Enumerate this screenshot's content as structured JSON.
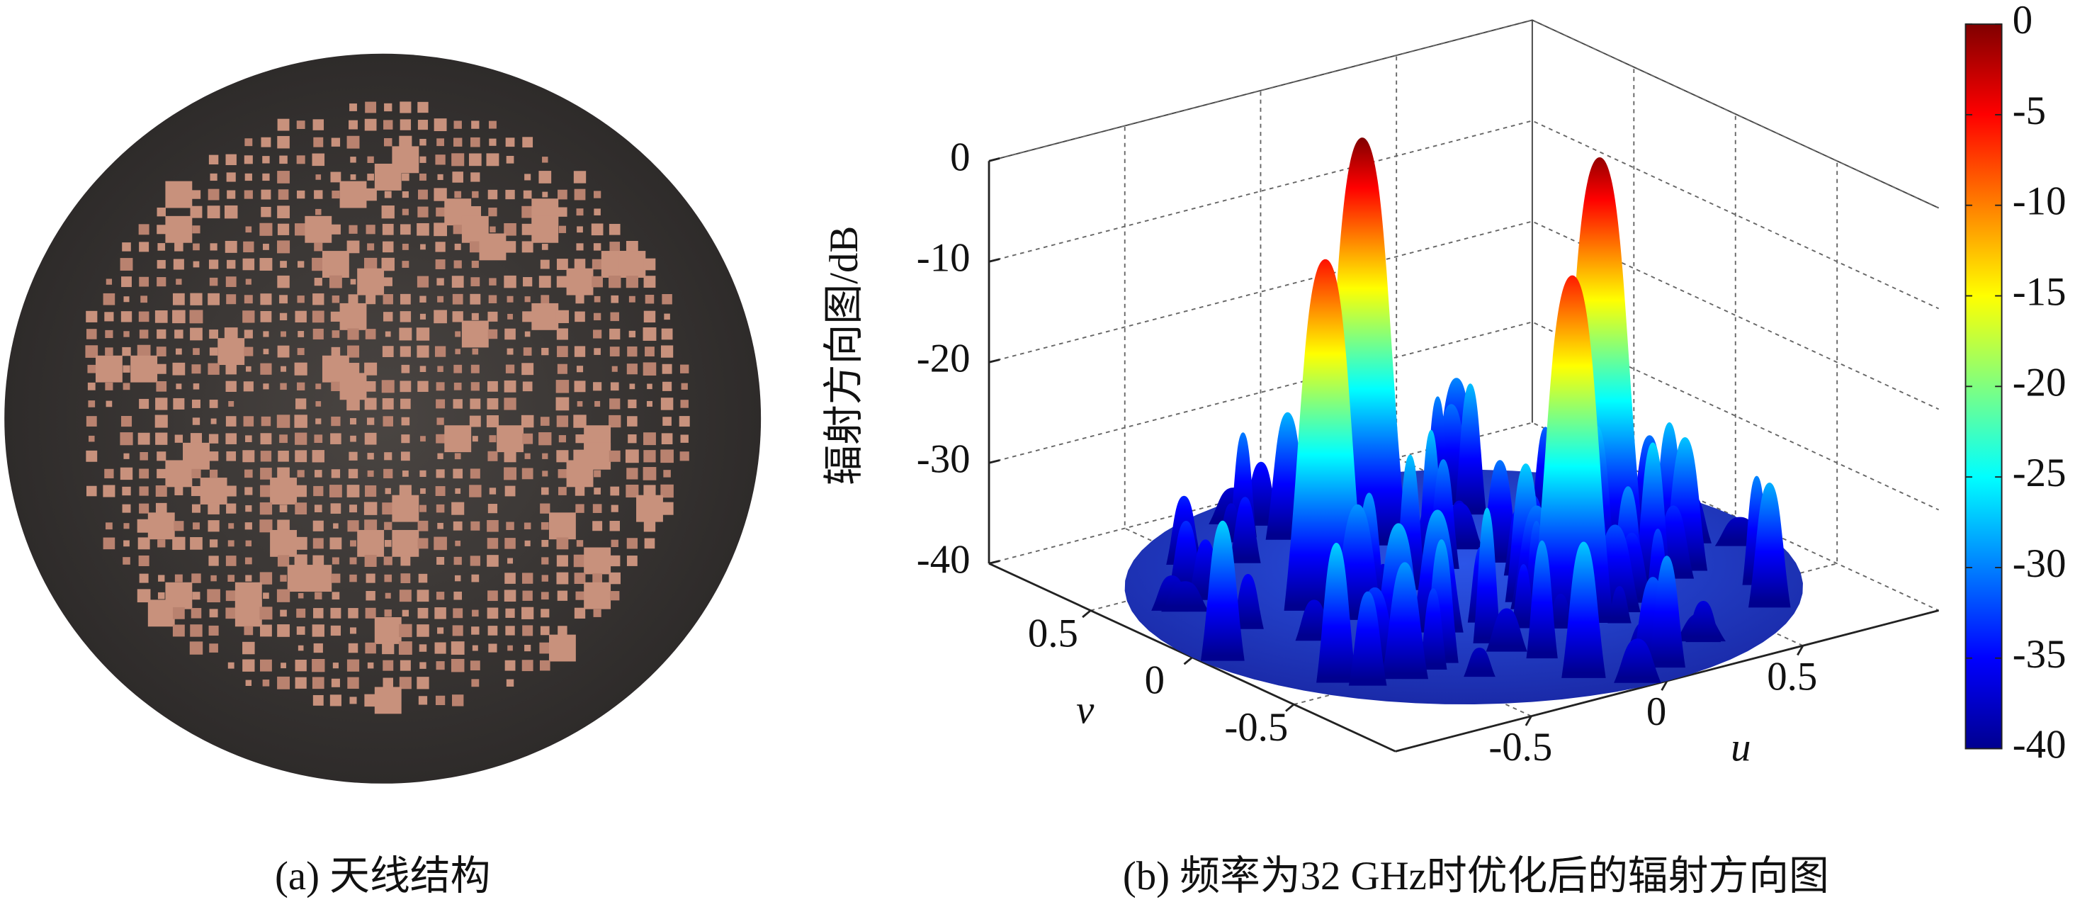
{
  "figure_a": {
    "caption": "(a) 天线结构"
  },
  "chart_data": {
    "type": "surface",
    "caption": "(b) 频率为32 GHz时优化后的辐射方向图",
    "zlabel": "辐射方向图/dB",
    "xlabel": "u",
    "ylabel": "v",
    "xlim": [
      -1,
      1
    ],
    "xticks": [
      -0.5,
      0,
      0.5
    ],
    "ylim": [
      -1,
      1
    ],
    "yticks": [
      -0.5,
      0,
      0.5
    ],
    "zlim": [
      -40,
      0
    ],
    "zticks": [
      -40,
      -30,
      -20,
      -10,
      0
    ],
    "grid": true,
    "colorbar": {
      "colormap": "jet",
      "lim": [
        -40,
        0
      ],
      "ticks": [
        -40,
        -35,
        -30,
        -25,
        -20,
        -15,
        -10,
        -5,
        0
      ]
    }
  }
}
